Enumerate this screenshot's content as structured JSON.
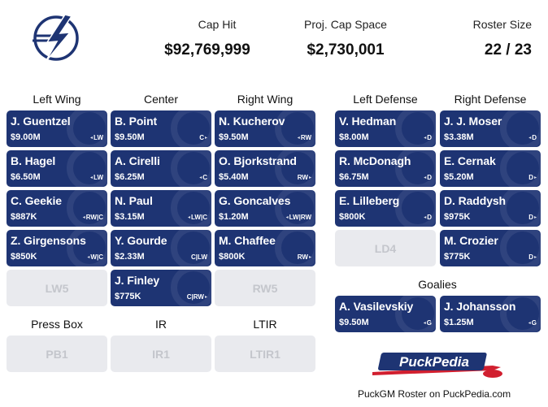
{
  "header": {
    "cap_hit_label": "Cap Hit",
    "cap_hit_value": "$92,769,999",
    "cap_space_label": "Proj. Cap Space",
    "cap_space_value": "$2,730,001",
    "roster_size_label": "Roster Size",
    "roster_size_value": "22 / 23"
  },
  "columns": {
    "left_wing": "Left Wing",
    "center": "Center",
    "right_wing": "Right Wing",
    "left_defense": "Left Defense",
    "right_defense": "Right Defense",
    "goalies": "Goalies",
    "press_box": "Press Box",
    "ir": "IR",
    "ltir": "LTIR"
  },
  "left_wing": [
    {
      "name": "J. Guentzel",
      "cap": "$9.00M",
      "pos": "LW"
    },
    {
      "name": "B. Hagel",
      "cap": "$6.50M",
      "pos": "LW"
    },
    {
      "name": "C. Geekie",
      "cap": "$887K",
      "pos": "RW|C"
    },
    {
      "name": "Z. Girgensons",
      "cap": "$850K",
      "pos": "W|C"
    }
  ],
  "center": [
    {
      "name": "B. Point",
      "cap": "$9.50M",
      "pos": "C"
    },
    {
      "name": "A. Cirelli",
      "cap": "$6.25M",
      "pos": "C"
    },
    {
      "name": "N. Paul",
      "cap": "$3.15M",
      "pos": "LW|C"
    },
    {
      "name": "Y. Gourde",
      "cap": "$2.33M",
      "pos": "C|LW"
    },
    {
      "name": "J. Finley",
      "cap": "$775K",
      "pos": "C|RW"
    }
  ],
  "right_wing": [
    {
      "name": "N. Kucherov",
      "cap": "$9.50M",
      "pos": "RW"
    },
    {
      "name": "O. Bjorkstrand",
      "cap": "$5.40M",
      "pos": "RW"
    },
    {
      "name": "G. Goncalves",
      "cap": "$1.20M",
      "pos": "LW|RW"
    },
    {
      "name": "M. Chaffee",
      "cap": "$800K",
      "pos": "RW"
    }
  ],
  "left_defense": [
    {
      "name": "V. Hedman",
      "cap": "$8.00M",
      "pos": "D"
    },
    {
      "name": "R. McDonagh",
      "cap": "$6.75M",
      "pos": "D"
    },
    {
      "name": "E. Lilleberg",
      "cap": "$800K",
      "pos": "D"
    }
  ],
  "right_defense": [
    {
      "name": "J. J. Moser",
      "cap": "$3.38M",
      "pos": "D"
    },
    {
      "name": "E. Cernak",
      "cap": "$5.20M",
      "pos": "D"
    },
    {
      "name": "D. Raddysh",
      "cap": "$975K",
      "pos": "D"
    },
    {
      "name": "M. Crozier",
      "cap": "$775K",
      "pos": "D"
    }
  ],
  "goalies": [
    {
      "name": "A. Vasilevskiy",
      "cap": "$9.50M",
      "pos": "G"
    },
    {
      "name": "J. Johansson",
      "cap": "$1.25M",
      "pos": "G"
    }
  ],
  "empty_slots": {
    "lw5": "LW5",
    "rw5": "RW5",
    "ld4": "LD4",
    "pb1": "PB1",
    "ir1": "IR1",
    "ltir1": "LTIR1"
  },
  "footer": {
    "logo_text": "PuckPedia",
    "caption": "PuckGM Roster on PuckPedia.com"
  },
  "colors": {
    "card": "#1e3473",
    "empty": "#e9eaee",
    "logo_red": "#d11f2f"
  },
  "icons": [
    "lightning-bolt-logo",
    "puckpedia-logo",
    "small-position-icon"
  ]
}
